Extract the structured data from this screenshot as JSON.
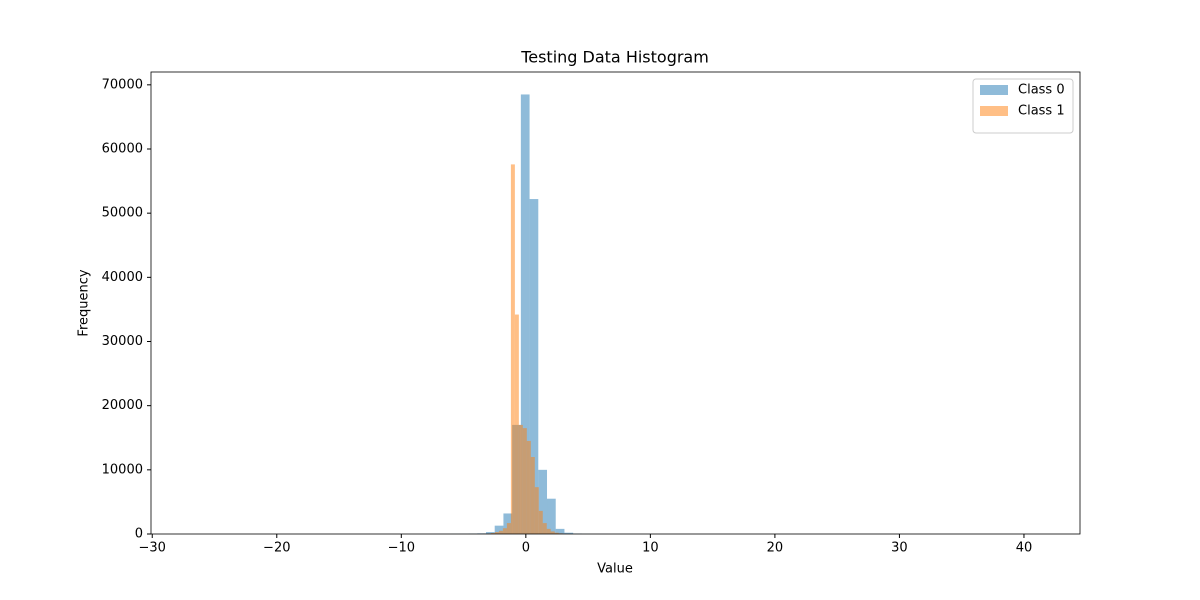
{
  "chart_data": {
    "type": "histogram",
    "title": "Testing Data Histogram",
    "x_label": "Value",
    "y_label": "Frequency",
    "series": [
      {
        "name": "Class 0",
        "color": "#1f77b4",
        "alpha": 0.5,
        "bins": [
          -28.4,
          -27.7,
          -27,
          -26.3,
          -25.6,
          -24.9,
          -24.2,
          -23.5,
          -22.8,
          -22.1,
          -21.4,
          -20.7,
          -20,
          -19.3,
          -18.6,
          -17.9,
          -17.2,
          -16.5,
          -15.8,
          -15.1,
          -14.4,
          -13.7,
          -13,
          -12.3,
          -11.6,
          -10.9,
          -10.2,
          -9.5,
          -8.8,
          -8.1,
          -7.4,
          -6.7,
          -6,
          -5.3,
          -4.6,
          -3.9,
          -3.2,
          -2.5,
          -1.8,
          -1.1,
          -0.4,
          0.3,
          1,
          1.7,
          2.4,
          3.1,
          3.8,
          4.5,
          5.2,
          5.9,
          6.6,
          7.3,
          8,
          8.7,
          9.4,
          10.1,
          10.8,
          11.5,
          12.2,
          12.9,
          13.6,
          14.3,
          15,
          15.7,
          16.4,
          17.1,
          17.8,
          18.5,
          19.2,
          19.9,
          20.6,
          21.3,
          22,
          22.7,
          23.4,
          24.1,
          24.8,
          25.5,
          26.2,
          26.9,
          27.6,
          28.3,
          29,
          29.7,
          30.4,
          31.1,
          31.8,
          32.5,
          33.2,
          33.9,
          34.6,
          35.3,
          36,
          36.7,
          37.4,
          38.1,
          38.8,
          39.5,
          40.2,
          40.9,
          41.6
        ],
        "values": [
          0,
          0,
          0,
          0,
          0,
          0,
          0,
          0,
          0,
          0,
          0,
          0,
          0,
          0,
          0,
          0,
          0,
          0,
          0,
          0,
          0,
          0,
          0,
          0,
          0,
          0,
          0,
          0,
          0,
          0,
          5,
          10,
          20,
          40,
          60,
          100,
          300,
          1300,
          3200,
          17000,
          68500,
          52200,
          10000,
          5500,
          800,
          200,
          60,
          20,
          10,
          5,
          0,
          0,
          0,
          0,
          0,
          0,
          0,
          0,
          0,
          0,
          0,
          0,
          0,
          0,
          0,
          0,
          0,
          0,
          0,
          0,
          0,
          0,
          0,
          0,
          0,
          0,
          0,
          0,
          0,
          0,
          0,
          0,
          0,
          0,
          0,
          0,
          0,
          0,
          0,
          0,
          0,
          0,
          0,
          0,
          0,
          0,
          0,
          0,
          0,
          0
        ]
      },
      {
        "name": "Class 1",
        "color": "#ff7f0e",
        "alpha": 0.5,
        "bins": [
          -9.2,
          -8.88,
          -8.56,
          -8.24,
          -7.92,
          -7.6,
          -7.28,
          -6.96,
          -6.64,
          -6.32,
          -6,
          -5.68,
          -5.36,
          -5.04,
          -4.72,
          -4.4,
          -4.08,
          -3.76,
          -3.44,
          -3.12,
          -2.8,
          -2.48,
          -2.16,
          -1.84,
          -1.52,
          -1.2,
          -0.88,
          -0.56,
          -0.24,
          0.08,
          0.4,
          0.72,
          1.04,
          1.36,
          1.68,
          2,
          2.32,
          2.64,
          2.96,
          3.28,
          3.6,
          3.92,
          4.24,
          4.56,
          4.88,
          5.2,
          5.52,
          5.84,
          6.16,
          6.48,
          6.8
        ],
        "values": [
          0,
          0,
          0,
          0,
          0,
          0,
          0,
          0,
          0,
          0,
          0,
          0,
          0,
          0,
          0,
          0,
          0,
          0,
          40,
          80,
          150,
          300,
          500,
          900,
          1700,
          57600,
          34200,
          17000,
          16500,
          14500,
          12000,
          7300,
          3600,
          1700,
          800,
          400,
          200,
          100,
          50,
          20,
          0,
          0,
          0,
          0,
          0,
          0,
          0,
          0,
          0,
          0
        ]
      }
    ],
    "xlim": [
      -30.1,
      44.5
    ],
    "xticks": [
      {
        "value": -30,
        "label": "−30"
      },
      {
        "value": -20,
        "label": "−20"
      },
      {
        "value": -10,
        "label": "−10"
      },
      0,
      10,
      20,
      30,
      40
    ],
    "ylim": [
      0,
      72000
    ],
    "yticks": [
      0,
      10000,
      20000,
      30000,
      40000,
      50000,
      60000,
      70000
    ],
    "legend": "upper right",
    "grid": false
  }
}
